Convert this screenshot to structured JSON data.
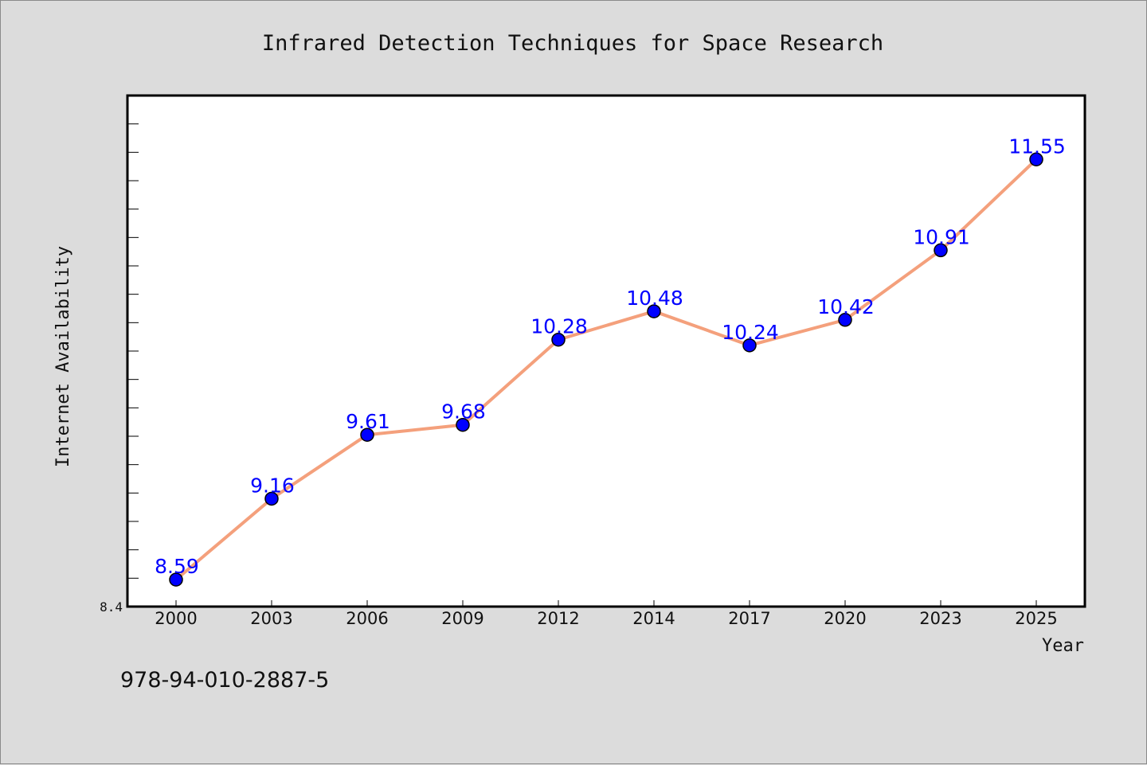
{
  "chart_data": {
    "type": "line",
    "title": "Infrared Detection Techniques for Space Research",
    "xlabel": "Year",
    "ylabel": "Internet Availability",
    "categories": [
      "2000",
      "2003",
      "2006",
      "2009",
      "2012",
      "2014",
      "2017",
      "2020",
      "2023",
      "2025"
    ],
    "series": [
      {
        "values": [
          8.59,
          9.16,
          9.61,
          9.68,
          10.28,
          10.48,
          10.24,
          10.42,
          10.91,
          11.55
        ],
        "labels": [
          "8.59",
          "9.16",
          "9.61",
          "9.68",
          "10.28",
          "10.48",
          "10.24",
          "10.42",
          "10.91",
          "11.55"
        ],
        "line_color": "#f4a07c",
        "marker_color": "#0000ff"
      }
    ],
    "ylim": [
      8.4,
      12.0
    ],
    "y_tick_labels": [
      "8.4"
    ],
    "grid": false,
    "legend": "none"
  },
  "footer": {
    "code": "978-94-010-2887-5"
  }
}
